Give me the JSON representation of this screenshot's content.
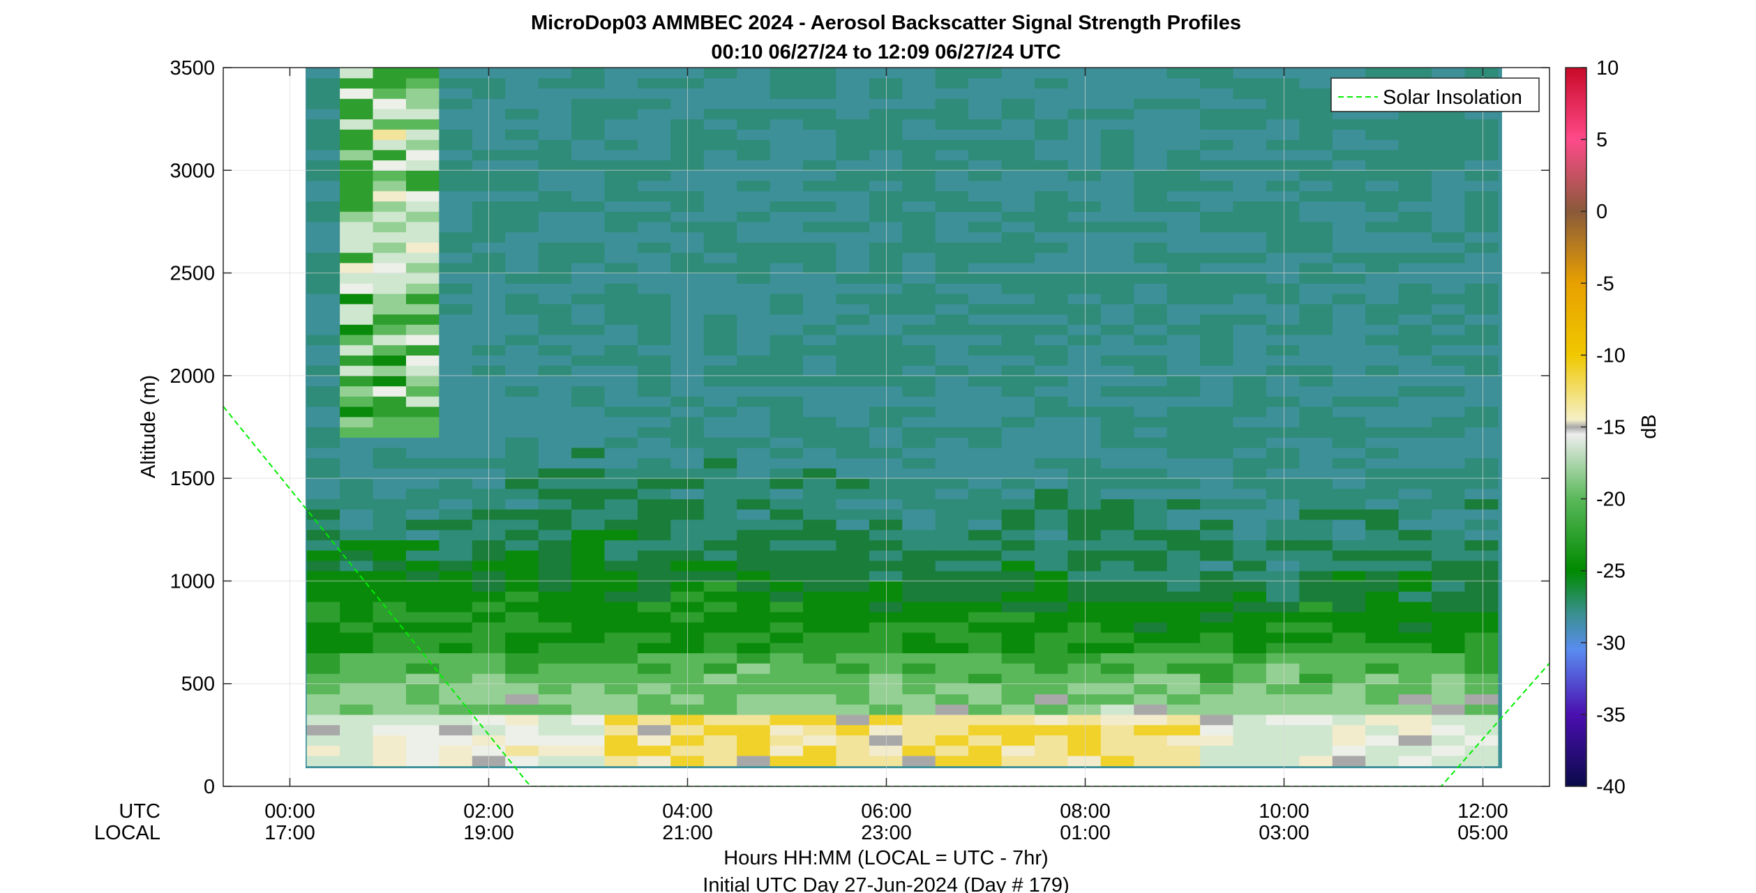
{
  "chart_data": {
    "type": "heatmap",
    "title": "MicroDop03 AMMBEC 2024 - Aerosol Backscatter Signal Strength Profiles",
    "subtitle": "00:10 06/27/24 to 12:09 06/27/24  UTC",
    "ylabel": "Altitude (m)",
    "xlabel": "Hours HH:MM  (LOCAL = UTC - 7hr)",
    "xlabel2": "Initial UTC Day 27-Jun-2024 (Day # 179)",
    "x_row_labels": [
      "UTC",
      "LOCAL"
    ],
    "x_ticks_utc": [
      "00:00",
      "02:00",
      "04:00",
      "06:00",
      "08:00",
      "10:00",
      "12:00"
    ],
    "x_ticks_local": [
      "17:00",
      "19:00",
      "21:00",
      "23:00",
      "01:00",
      "03:00",
      "05:00"
    ],
    "x_tick_hours": [
      0,
      2,
      4,
      6,
      8,
      10,
      12
    ],
    "xlim_hours": [
      -0.67,
      12.67
    ],
    "ylim": [
      0,
      3500
    ],
    "y_ticks": [
      "0",
      "500",
      "1000",
      "1500",
      "2000",
      "2500",
      "3000",
      "3500"
    ],
    "colorbar_label": "dB",
    "colorbar_range": [
      -40,
      10
    ],
    "colorbar_ticks": [
      "10",
      "5",
      "0",
      "-5",
      "-10",
      "-15",
      "-20",
      "-25",
      "-30",
      "-35",
      "-40"
    ],
    "legend": {
      "label": "Solar Insolation",
      "color": "#00ee00",
      "placement": "top-right"
    },
    "grid": true,
    "data_time_range_hours": [
      0.17,
      12.15
    ],
    "data_altitude_range_m": [
      100,
      3500
    ],
    "solar_insolation_line": [
      {
        "hour": -0.67,
        "altitude_m": 1850
      },
      {
        "hour": 2.42,
        "altitude_m": 0
      },
      {
        "hour": 11.58,
        "altitude_m": 0
      },
      {
        "hour": 12.67,
        "altitude_m": 600
      }
    ],
    "approx_profile_summary": [
      {
        "altitude_band_m": "100-400",
        "signal_db": -15,
        "note": "near-surface yellow/white maximum"
      },
      {
        "altitude_band_m": "400-700",
        "signal_db": -20
      },
      {
        "altitude_band_m": "700-1100",
        "signal_db": -25
      },
      {
        "altitude_band_m": "1100-1800",
        "signal_db": -27
      },
      {
        "altitude_band_m": "1800-3500",
        "signal_db": -29,
        "note": "teal background"
      }
    ]
  }
}
